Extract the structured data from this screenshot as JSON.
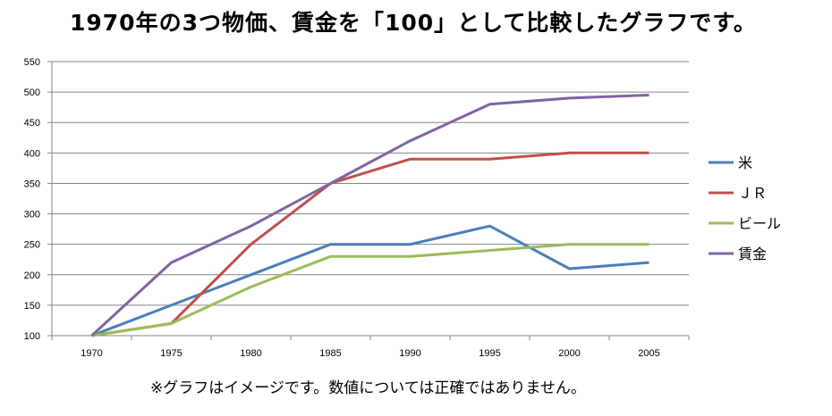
{
  "title": "1970年の3つ物価、賃金を「100」として比較したグラフです。",
  "footnote": "※グラフはイメージです。数値については正確ではありません。",
  "chart_data": {
    "type": "line",
    "title": "",
    "xlabel": "",
    "ylabel": "",
    "categories": [
      "1970",
      "1975",
      "1980",
      "1985",
      "1990",
      "1995",
      "2000",
      "2005"
    ],
    "ylim": [
      100,
      550
    ],
    "yticks": [
      100,
      150,
      200,
      250,
      300,
      350,
      400,
      450,
      500,
      550
    ],
    "grid": "horizontal",
    "legend_position": "right",
    "series": [
      {
        "name": "米",
        "color": "#4a7eba",
        "values": [
          100,
          150,
          200,
          250,
          250,
          280,
          210,
          220
        ]
      },
      {
        "name": "ＪＲ",
        "color": "#c0504d",
        "values": [
          100,
          120,
          250,
          350,
          390,
          390,
          400,
          400
        ]
      },
      {
        "name": "ビール",
        "color": "#9bbb59",
        "values": [
          100,
          120,
          180,
          230,
          230,
          240,
          250,
          250
        ]
      },
      {
        "name": "賃金",
        "color": "#8064a2",
        "values": [
          100,
          220,
          280,
          350,
          420,
          480,
          490,
          495
        ]
      }
    ]
  }
}
